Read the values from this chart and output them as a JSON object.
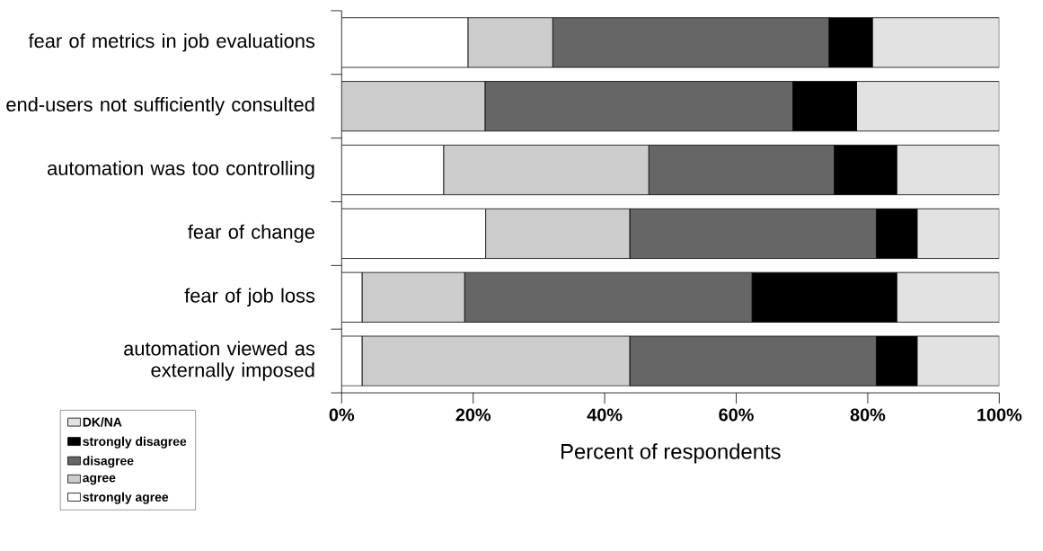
{
  "chart_data": {
    "type": "bar",
    "orientation": "horizontal",
    "stacked": true,
    "xlabel": "Percent of respondents",
    "categories": [
      "fear of metrics in job evaluations",
      "end-users not sufficiently consulted",
      "automation was too controlling",
      "fear of change",
      "fear of job loss",
      "automation viewed as externally imposed"
    ],
    "series": [
      {
        "name": "strongly agree",
        "color": "#ffffff",
        "values": [
          19.2,
          0,
          15.5,
          21.9,
          3.1,
          3.1
        ]
      },
      {
        "name": "agree",
        "color": "#cccccc",
        "values": [
          12.9,
          21.8,
          31.2,
          21.9,
          15.6,
          40.7
        ]
      },
      {
        "name": "disagree",
        "color": "#666666",
        "values": [
          42.0,
          46.8,
          28.2,
          37.5,
          43.7,
          37.5
        ]
      },
      {
        "name": "strongly disagree",
        "color": "#000000",
        "values": [
          6.6,
          9.7,
          9.5,
          6.2,
          22.0,
          6.2
        ]
      },
      {
        "name": "DK/NA",
        "color": "#e2e2e2",
        "values": [
          19.3,
          21.7,
          15.6,
          12.5,
          15.6,
          12.5
        ]
      }
    ],
    "xlim": [
      0,
      100
    ],
    "xticks": [
      {
        "value": 0,
        "label": "0%"
      },
      {
        "value": 20,
        "label": "20%"
      },
      {
        "value": 40,
        "label": "40%"
      },
      {
        "value": 60,
        "label": "60%"
      },
      {
        "value": 80,
        "label": "80%"
      },
      {
        "value": 100,
        "label": "100%"
      }
    ],
    "legend": "bottom left"
  }
}
